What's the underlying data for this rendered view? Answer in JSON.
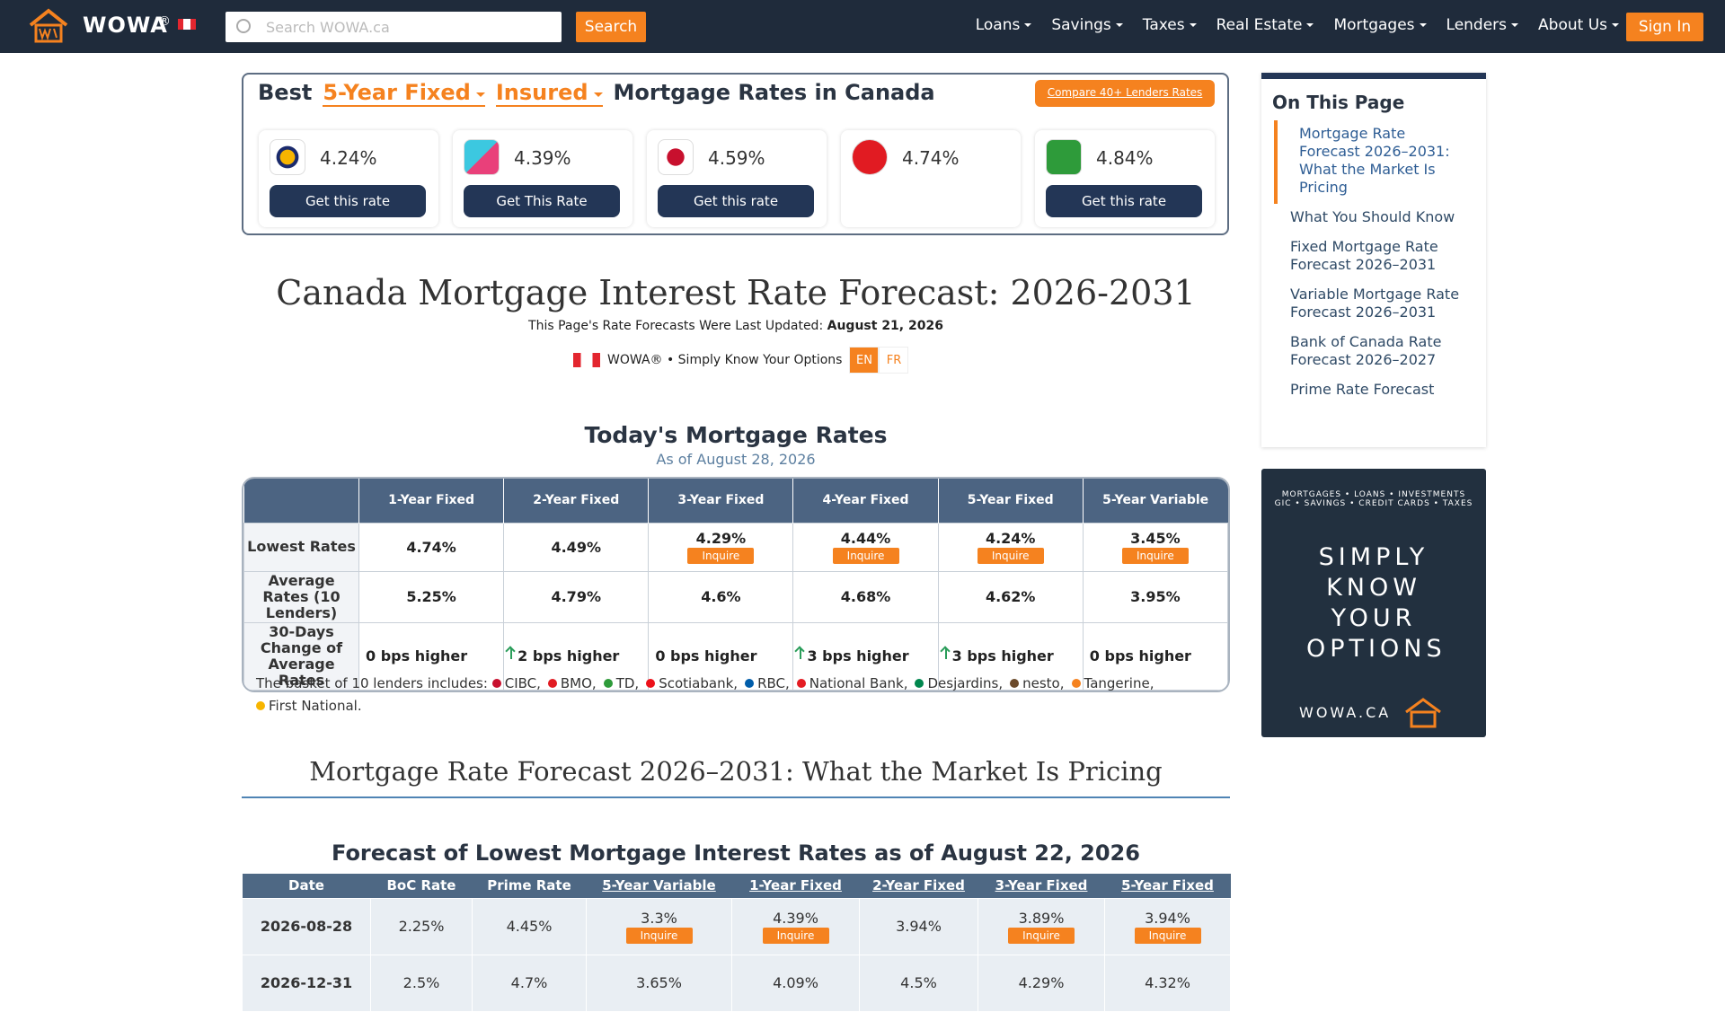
{
  "nav": {
    "brand": "WOWA",
    "reg": "®",
    "search_placeholder": "Search WOWA.ca",
    "search_button": "Search",
    "menu": [
      "Loans",
      "Savings",
      "Taxes",
      "Real Estate",
      "Mortgages",
      "Lenders",
      "About Us"
    ],
    "sign_in": "Sign In"
  },
  "rates_box": {
    "title_prefix": "Best",
    "term": "5-Year Fixed",
    "insurance": "Insured",
    "title_suffix": "Mortgage Rates in Canada",
    "compare": "Compare 40+ Lenders Rates",
    "cards": [
      {
        "rate": "4.24%",
        "button": "Get this rate"
      },
      {
        "rate": "4.39%",
        "button": "Get This Rate"
      },
      {
        "rate": "4.59%",
        "button": "Get this rate"
      },
      {
        "rate": "4.74%"
      },
      {
        "rate": "4.84%",
        "button": "Get this rate"
      }
    ]
  },
  "header": {
    "title": "Canada Mortgage Interest Rate Forecast: 2026-2031",
    "updated_label": "This Page's Rate Forecasts Were Last Updated:",
    "updated_date": "August 21, 2026",
    "brand_line": "WOWA® • Simply Know Your Options",
    "languages": [
      "EN",
      "FR"
    ]
  },
  "todays_rates": {
    "title": "Today's Mortgage Rates",
    "subtitle": "As of August 28, 2026",
    "columns": [
      "1-Year Fixed",
      "2-Year Fixed",
      "3-Year Fixed",
      "4-Year Fixed",
      "5-Year Fixed",
      "5-Year Variable"
    ],
    "inquire": "Inquire",
    "rows": [
      {
        "label": "Lowest Rates",
        "cells": [
          "4.74%",
          "4.49%",
          "4.29%",
          "4.44%",
          "4.24%",
          "3.45%"
        ]
      },
      {
        "label": "Average Rates (10 Lenders)",
        "cells": [
          "5.25%",
          "4.79%",
          "4.6%",
          "4.68%",
          "4.62%",
          "3.95%"
        ]
      },
      {
        "label": "30-Days Change of Average Rates",
        "cells": [
          "0 bps higher",
          "2 bps higher",
          "0 bps higher",
          "3 bps higher",
          "3 bps higher",
          "0 bps higher"
        ]
      }
    ],
    "basket_intro": "The basket of 10 lenders includes:",
    "lenders": [
      "CIBC,",
      "BMO,",
      "TD,",
      "Scotiabank,",
      "RBC,",
      "National Bank,",
      "Desjardins,",
      "nesto,",
      "Tangerine,",
      "First National."
    ]
  },
  "section": {
    "heading": "Mortgage Rate Forecast 2026–2031: What the Market Is Pricing"
  },
  "forecast": {
    "title": "Forecast of Lowest Mortgage Interest Rates as of August 22, 2026",
    "columns": [
      "Date",
      "BoC Rate",
      "Prime Rate",
      "5-Year Variable",
      "1-Year Fixed",
      "2-Year Fixed",
      "3-Year Fixed",
      "5-Year Fixed"
    ],
    "inquire": "Inquire",
    "rows": [
      [
        "2026-08-28",
        "2.25%",
        "4.45%",
        "3.3%",
        "4.39%",
        "3.94%",
        "3.89%",
        "3.94%"
      ],
      [
        "2026-12-31",
        "2.5%",
        "4.7%",
        "3.65%",
        "4.09%",
        "4.5%",
        "4.29%",
        "4.32%"
      ]
    ]
  },
  "sidebar": {
    "toc_title": "On This Page",
    "toc": [
      "Mortgage Rate Forecast 2026–2031: What the Market Is Pricing",
      "What You Should Know",
      "Fixed Mortgage Rate Forecast 2026–2031",
      "Variable Mortgage Rate Forecast 2026–2031",
      "Bank of Canada Rate Forecast 2026–2027",
      "Prime Rate Forecast"
    ],
    "ad": {
      "line1": "MORTGAGES • LOANS • INVESTMENTS",
      "line2": "GIC • SAVINGS • CREDIT CARDS • TAXES",
      "slogan": "SIMPLY KNOW YOUR OPTIONS",
      "url": "WOWA.CA"
    }
  }
}
